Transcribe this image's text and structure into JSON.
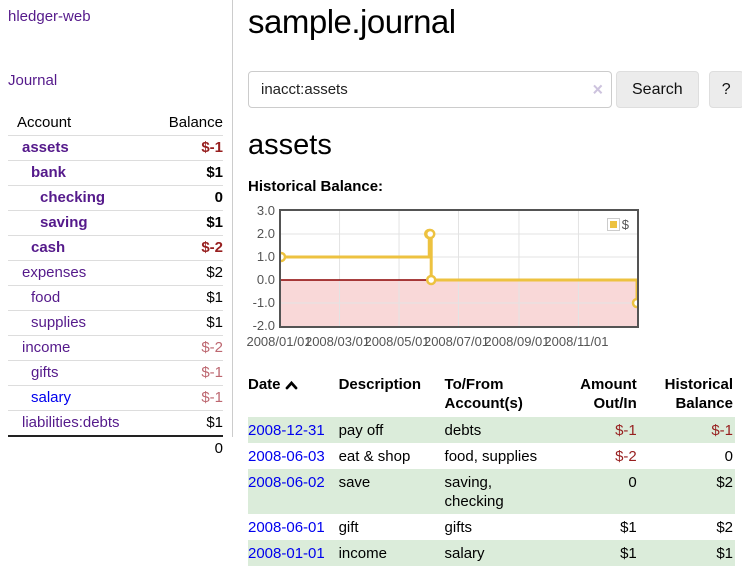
{
  "app": {
    "title": "hledger-web"
  },
  "colors": {
    "link_visited": "#551a8b",
    "link_unvisited": "#0000ee",
    "negative": "#971f1f",
    "negative_soft": "#bd6770",
    "row_stripe_green": "#dbecda",
    "chart_line": "#edc240",
    "chart_negative_fill": "#f9d8d8",
    "chart_zero_line": "#8b0000"
  },
  "sidebar": {
    "journal_link": "Journal",
    "accounts_table": {
      "headers": {
        "account": "Account",
        "balance": "Balance"
      },
      "rows": [
        {
          "name": "assets",
          "balance": "$-1",
          "depth": 1,
          "bold": true,
          "negative": "strong"
        },
        {
          "name": "bank",
          "balance": "$1",
          "depth": 2,
          "bold": true
        },
        {
          "name": "checking",
          "balance": "0",
          "depth": 3,
          "bold": true
        },
        {
          "name": "saving",
          "balance": "$1",
          "depth": 3,
          "bold": true
        },
        {
          "name": "cash",
          "balance": "$-2",
          "depth": 2,
          "bold": true,
          "negative": "strong"
        },
        {
          "name": "expenses",
          "balance": "$2",
          "depth": 1
        },
        {
          "name": "food",
          "balance": "$1",
          "depth": 2
        },
        {
          "name": "supplies",
          "balance": "$1",
          "depth": 2
        },
        {
          "name": "income",
          "balance": "$-2",
          "depth": 1,
          "negative": "soft"
        },
        {
          "name": "gifts",
          "balance": "$-1",
          "depth": 2,
          "negative": "soft"
        },
        {
          "name": "salary",
          "balance": "$-1",
          "depth": 2,
          "negative": "soft",
          "link_state": "unvisited"
        },
        {
          "name": "liabilities:debts",
          "balance": "$1",
          "depth": 1
        }
      ],
      "total": "0"
    }
  },
  "main": {
    "title": "sample.journal",
    "search": {
      "value": "inacct:assets",
      "clear_icon": "×",
      "search_button": "Search",
      "help_button": "?"
    },
    "account_heading": "assets",
    "chart_label": "Historical Balance:"
  },
  "chart_data": {
    "type": "line",
    "title": "Historical Balance",
    "series": [
      {
        "name": "$",
        "color": "#edc240",
        "steps": true,
        "points": [
          [
            "2008-01-01",
            1
          ],
          [
            "2008-06-01",
            2
          ],
          [
            "2008-06-02",
            2
          ],
          [
            "2008-06-03",
            0
          ],
          [
            "2008-12-31",
            -1
          ]
        ]
      }
    ],
    "xlim": [
      "2008-01-01",
      "2008-12-31"
    ],
    "ylim": [
      -2,
      3
    ],
    "x_ticks": [
      "2008/01/01",
      "2008/03/01",
      "2008/05/01",
      "2008/07/01",
      "2008/09/01",
      "2008/11/01"
    ],
    "y_ticks": [
      3.0,
      2.0,
      1.0,
      0.0,
      -1.0,
      -2.0
    ],
    "grid": true,
    "legend": {
      "position": "top-right",
      "label": "$"
    },
    "negative_region_fill": "#f9d8d8",
    "zero_line_color": "#8b0000"
  },
  "register": {
    "headers": [
      {
        "label": "Date",
        "sort": "ascending"
      },
      {
        "label": "Description"
      },
      {
        "label": "To/From Account(s)"
      },
      {
        "label": "Amount Out/In"
      },
      {
        "label": "Historical Balance"
      }
    ],
    "rows": [
      {
        "date": "2008-12-31",
        "description": "pay off",
        "accounts": "debts",
        "amount": "$-1",
        "balance": "$-1"
      },
      {
        "date": "2008-06-03",
        "description": "eat & shop",
        "accounts": "food, supplies",
        "amount": "$-2",
        "balance": "0"
      },
      {
        "date": "2008-06-02",
        "description": "save",
        "accounts": "saving, checking",
        "amount": "0",
        "balance": "$2"
      },
      {
        "date": "2008-06-01",
        "description": "gift",
        "accounts": "gifts",
        "amount": "$1",
        "balance": "$2"
      },
      {
        "date": "2008-01-01",
        "description": "income",
        "accounts": "salary",
        "amount": "$1",
        "balance": "$1"
      }
    ]
  }
}
